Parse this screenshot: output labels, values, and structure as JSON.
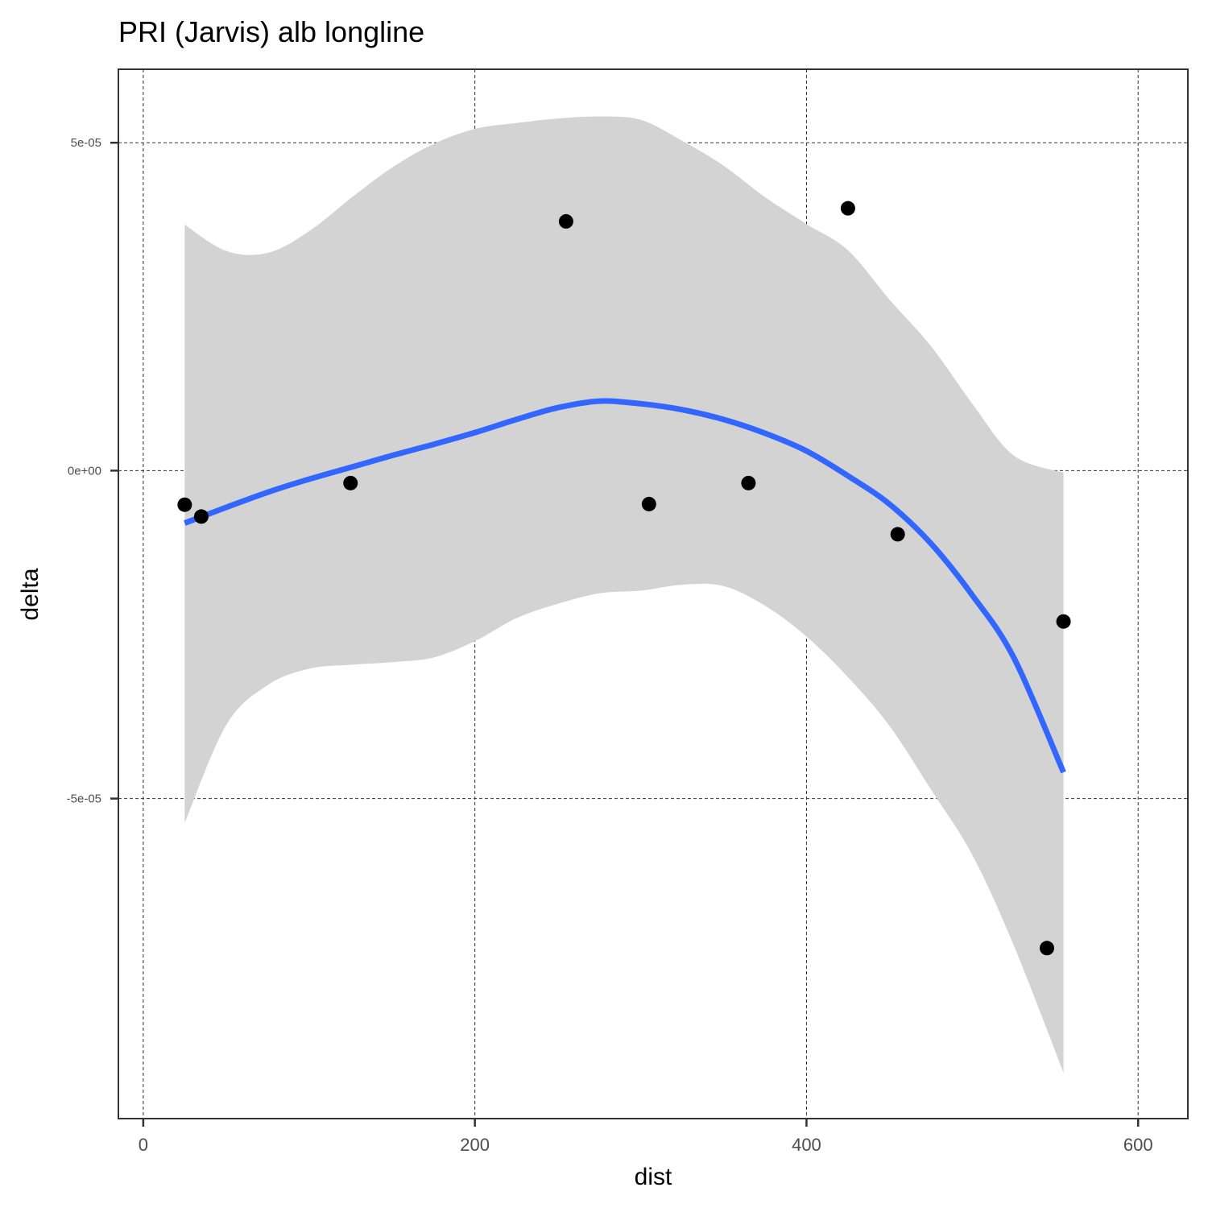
{
  "chart_data": {
    "type": "scatter",
    "title": "PRI (Jarvis) alb longline",
    "xlabel": "dist",
    "ylabel": "delta",
    "xlim": [
      -15,
      630
    ],
    "ylim": [
      -9.88e-05,
      6.12e-05
    ],
    "x_ticks": [
      0,
      200,
      400,
      600
    ],
    "x_tick_labels": [
      "0",
      "200",
      "400",
      "600"
    ],
    "y_ticks": [
      5e-05,
      0,
      -5e-05
    ],
    "y_tick_labels": [
      "5e-05",
      "0e+00",
      "-5e-05"
    ],
    "grid": true,
    "legend": "none",
    "series": [
      {
        "kind": "points",
        "x": [
          25,
          35,
          125,
          255,
          305,
          365,
          425,
          455,
          545,
          555
        ],
        "y": [
          -5.2e-06,
          -7e-06,
          -1.9e-06,
          3.8e-05,
          -5.1e-06,
          -1.9e-06,
          4e-05,
          -9.7e-06,
          -7.28e-05,
          -2.3e-05
        ],
        "color": "#000000"
      },
      {
        "kind": "smooth",
        "x": [
          25,
          50,
          75,
          100,
          125,
          150,
          175,
          200,
          225,
          250,
          275,
          300,
          325,
          350,
          375,
          400,
          425,
          450,
          475,
          500,
          525,
          555
        ],
        "y": [
          -8e-06,
          -5.6e-06,
          -3.3e-06,
          -1.3e-06,
          5e-07,
          2.3e-06,
          4e-06,
          5.8e-06,
          7.8e-06,
          9.6e-06,
          1.06e-05,
          1.02e-05,
          9.3e-06,
          7.8e-06,
          5.7e-06,
          3e-06,
          -8e-07,
          -5.1e-06,
          -1.11e-05,
          -1.9e-05,
          -2.85e-05,
          -4.6e-05
        ],
        "color": "#3366ff"
      },
      {
        "kind": "confidence_band",
        "x": [
          25,
          50,
          75,
          100,
          125,
          150,
          175,
          200,
          225,
          250,
          275,
          300,
          325,
          350,
          375,
          400,
          425,
          450,
          475,
          500,
          525,
          555
        ],
        "upper": [
          3.75e-05,
          3.35e-05,
          3.32e-05,
          3.65e-05,
          4.15e-05,
          4.62e-05,
          4.98e-05,
          5.21e-05,
          5.3e-05,
          5.37e-05,
          5.4e-05,
          5.35e-05,
          5.03e-05,
          4.65e-05,
          4.17e-05,
          3.76e-05,
          3.36e-05,
          2.61e-05,
          1.9e-05,
          1.02e-05,
          2.3e-06,
          -3e-07
        ],
        "lower": [
          -5.37e-05,
          -3.88e-05,
          -3.27e-05,
          -3.02e-05,
          -2.96e-05,
          -2.92e-05,
          -2.85e-05,
          -2.6e-05,
          -2.25e-05,
          -2.03e-05,
          -1.87e-05,
          -1.83e-05,
          -1.74e-05,
          -1.76e-05,
          -2.06e-05,
          -2.53e-05,
          -3.15e-05,
          -3.89e-05,
          -4.86e-05,
          -5.86e-05,
          -7.24e-05,
          -9.18e-05
        ],
        "color": "#d3d3d3"
      }
    ]
  }
}
